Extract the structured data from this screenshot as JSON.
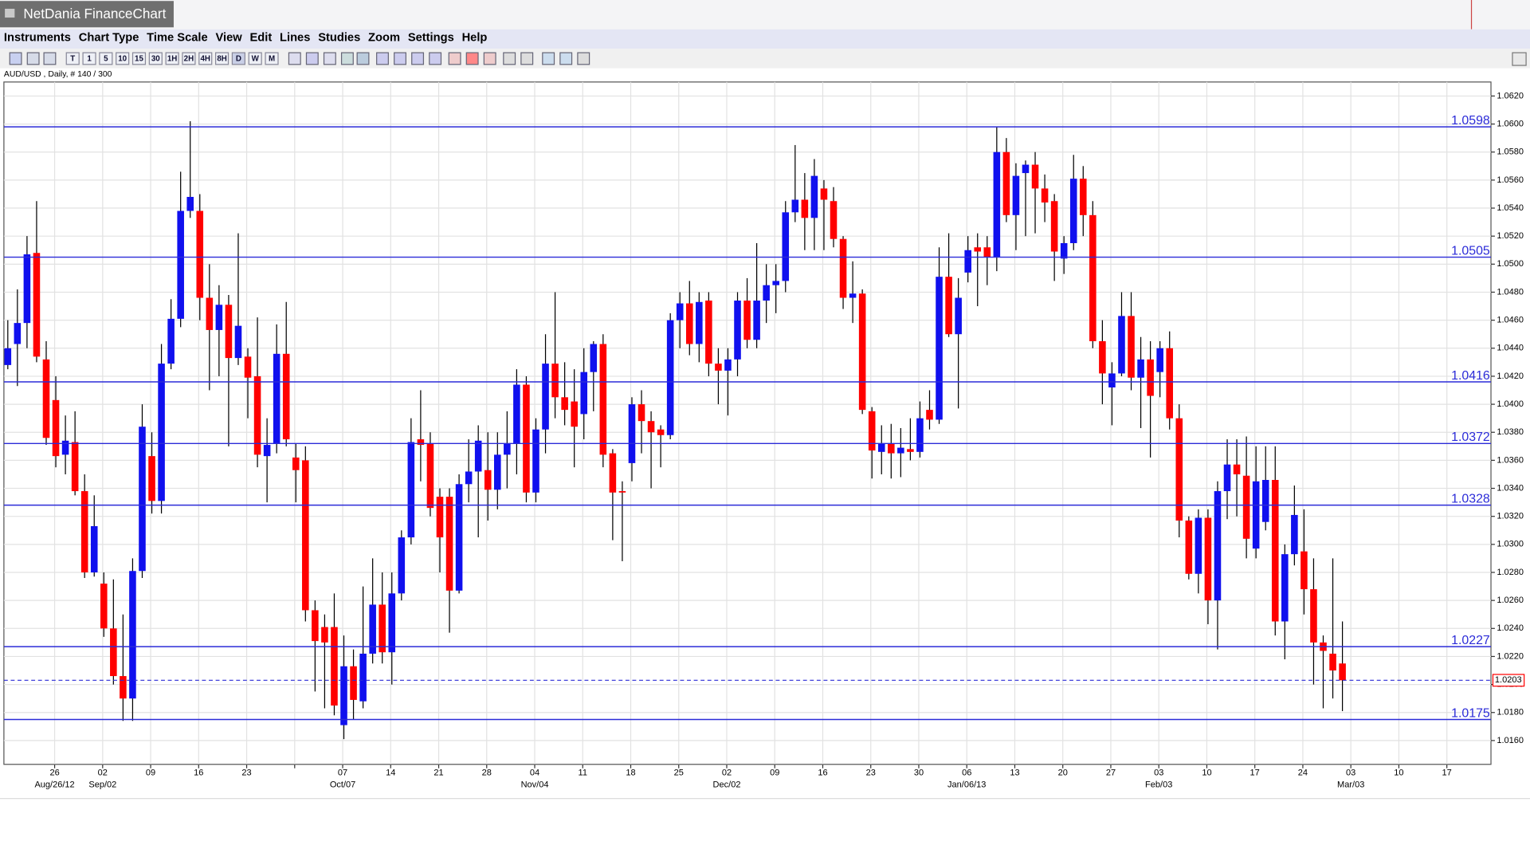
{
  "app_title": "NetDania FinanceChart",
  "menu": [
    "Instruments",
    "Chart Type",
    "Time Scale",
    "View",
    "Edit",
    "Lines",
    "Studies",
    "Zoom",
    "Settings",
    "Help"
  ],
  "toolbar": [
    "T",
    "1",
    "5",
    "10",
    "15",
    "30",
    "1H",
    "2H",
    "4H",
    "8H",
    "D",
    "W",
    "M"
  ],
  "chart_data": {
    "type": "candlestick",
    "title": "AUD/USD , Daily, # 140 / 300",
    "up_color": "#1010ee",
    "down_color": "#ff0000",
    "level_color": "#2b2bd8",
    "grid": true,
    "ylim": [
      1.0143,
      1.063
    ],
    "yticks": [
      {
        "value": 1.062,
        "label": "1.0620"
      },
      {
        "value": 1.06,
        "label": "1.0600"
      },
      {
        "value": 1.058,
        "label": "1.0580"
      },
      {
        "value": 1.056,
        "label": "1.0560"
      },
      {
        "value": 1.054,
        "label": "1.0540"
      },
      {
        "value": 1.052,
        "label": "1.0520"
      },
      {
        "value": 1.05,
        "label": "1.0500"
      },
      {
        "value": 1.048,
        "label": "1.0480"
      },
      {
        "value": 1.046,
        "label": "1.0460"
      },
      {
        "value": 1.044,
        "label": "1.0440"
      },
      {
        "value": 1.042,
        "label": "1.0420"
      },
      {
        "value": 1.04,
        "label": "1.0400"
      },
      {
        "value": 1.038,
        "label": "1.0380"
      },
      {
        "value": 1.036,
        "label": "1.0360"
      },
      {
        "value": 1.034,
        "label": "1.0340"
      },
      {
        "value": 1.032,
        "label": "1.0320"
      },
      {
        "value": 1.03,
        "label": "1.0300"
      },
      {
        "value": 1.028,
        "label": "1.0280"
      },
      {
        "value": 1.026,
        "label": "1.0260"
      },
      {
        "value": 1.024,
        "label": "1.0240"
      },
      {
        "value": 1.022,
        "label": "1.0220"
      },
      {
        "value": 1.02,
        "label": "1.0200"
      },
      {
        "value": 1.018,
        "label": "1.0180"
      },
      {
        "value": 1.016,
        "label": "1.0160"
      }
    ],
    "xticks": [
      "26",
      "02",
      "09",
      "16",
      "23",
      null,
      "07",
      "14",
      "21",
      "28",
      "04",
      "11",
      "18",
      "25",
      "02",
      "09",
      "16",
      "23",
      "30",
      "06",
      "13",
      "20",
      "27",
      "03",
      "10",
      "17",
      "24",
      "03",
      "10",
      "17"
    ],
    "xtick_sublabels": [
      "Aug/26/12",
      "Sep/02",
      null,
      null,
      null,
      null,
      "Oct/07",
      null,
      null,
      null,
      "Nov/04",
      null,
      null,
      null,
      "Dec/02",
      null,
      null,
      null,
      null,
      "Jan/06/13",
      null,
      null,
      null,
      "Feb/03",
      null,
      null,
      null,
      "Mar/03",
      null,
      null
    ],
    "levels": [
      1.0598,
      1.0505,
      1.0416,
      1.0372,
      1.0328,
      1.0227,
      1.0175
    ],
    "last_price": 1.0203,
    "open": [
      1.0428,
      1.0443,
      1.0458,
      1.0508,
      1.0432,
      1.0403,
      1.0364,
      1.0373,
      1.0338,
      1.028,
      1.0272,
      1.024,
      1.0206,
      1.019,
      1.0281,
      1.0363,
      1.0331,
      1.0429,
      1.0461,
      1.0538,
      1.0538,
      1.0476,
      1.0453,
      1.0471,
      1.0433,
      1.0434,
      1.042,
      1.0363,
      1.0372,
      1.0436,
      1.0362,
      1.036,
      1.0253,
      1.0241,
      1.0241,
      1.0171,
      1.0213,
      1.0188,
      1.0222,
      1.0257,
      1.0223,
      1.0265,
      1.0305,
      1.0375,
      1.0372,
      1.0334,
      1.0334,
      1.0267,
      1.0343,
      1.0352,
      1.0353,
      1.0339,
      1.0364,
      1.0372,
      1.0414,
      1.0337,
      1.0382,
      1.0429,
      1.0405,
      1.0402,
      1.0393,
      1.0423,
      1.0443,
      1.0365,
      1.0338,
      1.0358,
      1.04,
      1.0388,
      1.0382,
      1.0378,
      1.046,
      1.0472,
      1.0443,
      1.0474,
      1.0429,
      1.0424,
      1.0432,
      1.0474,
      1.0446,
      1.0474,
      1.0485,
      1.0488,
      1.0537,
      1.0546,
      1.0533,
      1.0554,
      1.0545,
      1.0518,
      1.0476,
      1.0479,
      1.0395,
      1.0366,
      1.0372,
      1.0365,
      1.0368,
      1.0366,
      1.0396,
      1.0389,
      1.0491,
      1.045,
      1.0494,
      1.0512,
      1.0512,
      1.0505,
      1.058,
      1.0535,
      1.0565,
      1.0571,
      1.0554,
      1.0545,
      1.0504,
      1.0515,
      1.0561,
      1.0535,
      1.0445,
      1.0412,
      1.0422,
      1.0463,
      1.0419,
      1.0432,
      1.0423,
      1.044,
      1.039,
      1.0317,
      1.0279,
      1.0319,
      1.026,
      1.0338,
      1.0357,
      1.0349,
      1.0297,
      1.0316,
      1.0346,
      1.0245,
      1.0293,
      1.0295,
      1.0268,
      1.023,
      1.0222,
      1.0215
    ],
    "high": [
      1.046,
      1.0482,
      1.052,
      1.0545,
      1.0445,
      1.042,
      1.0392,
      1.0395,
      1.035,
      1.0335,
      1.028,
      1.0275,
      1.025,
      1.029,
      1.04,
      1.038,
      1.0443,
      1.0475,
      1.0566,
      1.0602,
      1.055,
      1.05,
      1.0485,
      1.0478,
      1.0522,
      1.044,
      1.0462,
      1.039,
      1.0457,
      1.0473,
      1.0372,
      1.037,
      1.026,
      1.025,
      1.0265,
      1.0235,
      1.0225,
      1.027,
      1.029,
      1.028,
      1.028,
      1.031,
      1.039,
      1.041,
      1.038,
      1.034,
      1.034,
      1.035,
      1.0375,
      1.0385,
      1.038,
      1.038,
      1.0395,
      1.0425,
      1.042,
      1.039,
      1.045,
      1.048,
      1.043,
      1.0425,
      1.044,
      1.0445,
      1.045,
      1.0368,
      1.0345,
      1.0405,
      1.041,
      1.0395,
      1.0385,
      1.0465,
      1.048,
      1.0488,
      1.048,
      1.048,
      1.044,
      1.044,
      1.048,
      1.049,
      1.0515,
      1.05,
      1.05,
      1.0545,
      1.0585,
      1.0565,
      1.0575,
      1.056,
      1.0555,
      1.052,
      1.0502,
      1.0482,
      1.0398,
      1.0385,
      1.0386,
      1.0383,
      1.039,
      1.0402,
      1.041,
      1.0512,
      1.0522,
      1.049,
      1.052,
      1.0522,
      1.052,
      1.0598,
      1.059,
      1.0572,
      1.0574,
      1.058,
      1.0564,
      1.055,
      1.052,
      1.0578,
      1.057,
      1.0545,
      1.046,
      1.043,
      1.048,
      1.048,
      1.0448,
      1.0445,
      1.0445,
      1.0452,
      1.04,
      1.032,
      1.0325,
      1.0325,
      1.0345,
      1.0375,
      1.0375,
      1.0377,
      1.037,
      1.037,
      1.037,
      1.03,
      1.0342,
      1.0325,
      1.029,
      1.0235,
      1.029,
      1.0245
    ],
    "low": [
      1.0425,
      1.0413,
      1.044,
      1.043,
      1.0371,
      1.0355,
      1.035,
      1.0335,
      1.0276,
      1.0277,
      1.0234,
      1.02,
      1.0174,
      1.0174,
      1.0276,
      1.0322,
      1.0322,
      1.0425,
      1.0455,
      1.0533,
      1.046,
      1.041,
      1.042,
      1.037,
      1.0428,
      1.039,
      1.0355,
      1.033,
      1.0365,
      1.037,
      1.033,
      1.0245,
      1.0195,
      1.0183,
      1.0178,
      1.0161,
      1.0175,
      1.0183,
      1.0215,
      1.0215,
      1.02,
      1.026,
      1.03,
      1.0345,
      1.032,
      1.028,
      1.0237,
      1.0265,
      1.033,
      1.0305,
      1.0317,
      1.0325,
      1.034,
      1.035,
      1.033,
      1.033,
      1.0365,
      1.039,
      1.0385,
      1.0355,
      1.0375,
      1.0395,
      1.0355,
      1.0303,
      1.0288,
      1.0345,
      1.0365,
      1.034,
      1.0355,
      1.0375,
      1.044,
      1.0435,
      1.043,
      1.042,
      1.04,
      1.0392,
      1.042,
      1.044,
      1.044,
      1.0458,
      1.0465,
      1.048,
      1.053,
      1.051,
      1.051,
      1.051,
      1.0512,
      1.0468,
      1.0458,
      1.0393,
      1.0347,
      1.035,
      1.0347,
      1.0348,
      1.036,
      1.0362,
      1.0382,
      1.0386,
      1.0448,
      1.0397,
      1.0487,
      1.047,
      1.0485,
      1.0495,
      1.053,
      1.051,
      1.052,
      1.0522,
      1.053,
      1.0488,
      1.0493,
      1.051,
      1.052,
      1.044,
      1.04,
      1.0385,
      1.042,
      1.041,
      1.0383,
      1.0362,
      1.0405,
      1.0382,
      1.0305,
      1.0275,
      1.0265,
      1.0243,
      1.0225,
      1.0318,
      1.032,
      1.029,
      1.029,
      1.031,
      1.0235,
      1.0218,
      1.0285,
      1.025,
      1.02,
      1.0183,
      1.019,
      1.0181
    ],
    "close": [
      1.044,
      1.0458,
      1.0507,
      1.0434,
      1.0376,
      1.0363,
      1.0374,
      1.0338,
      1.028,
      1.0313,
      1.024,
      1.0206,
      1.019,
      1.0281,
      1.0384,
      1.0331,
      1.0429,
      1.0461,
      1.0538,
      1.0548,
      1.0476,
      1.0453,
      1.0471,
      1.0433,
      1.0456,
      1.0419,
      1.0364,
      1.0371,
      1.0436,
      1.0375,
      1.0353,
      1.0253,
      1.0231,
      1.023,
      1.0185,
      1.0213,
      1.0189,
      1.0222,
      1.0257,
      1.0223,
      1.0265,
      1.0305,
      1.0373,
      1.0371,
      1.0326,
      1.0305,
      1.0267,
      1.0343,
      1.0352,
      1.0374,
      1.0339,
      1.0364,
      1.0372,
      1.0414,
      1.0337,
      1.0382,
      1.0429,
      1.0405,
      1.0396,
      1.0384,
      1.0423,
      1.0443,
      1.0364,
      1.0337,
      1.0337,
      1.04,
      1.0388,
      1.038,
      1.0378,
      1.046,
      1.0472,
      1.0443,
      1.0473,
      1.0429,
      1.0424,
      1.0432,
      1.0474,
      1.0446,
      1.0474,
      1.0485,
      1.0488,
      1.0537,
      1.0546,
      1.0533,
      1.0563,
      1.0546,
      1.0518,
      1.0476,
      1.0479,
      1.0396,
      1.0367,
      1.0372,
      1.0365,
      1.0369,
      1.0366,
      1.039,
      1.0389,
      1.0491,
      1.045,
      1.0476,
      1.051,
      1.0509,
      1.0505,
      1.058,
      1.0535,
      1.0563,
      1.0571,
      1.0554,
      1.0544,
      1.0509,
      1.0515,
      1.0561,
      1.0535,
      1.0445,
      1.0422,
      1.0422,
      1.0463,
      1.0419,
      1.0432,
      1.0406,
      1.044,
      1.039,
      1.0317,
      1.0279,
      1.0319,
      1.026,
      1.0338,
      1.0357,
      1.035,
      1.0304,
      1.0345,
      1.0346,
      1.0245,
      1.0293,
      1.0321,
      1.0268,
      1.023,
      1.0224,
      1.021,
      1.0203
    ]
  }
}
